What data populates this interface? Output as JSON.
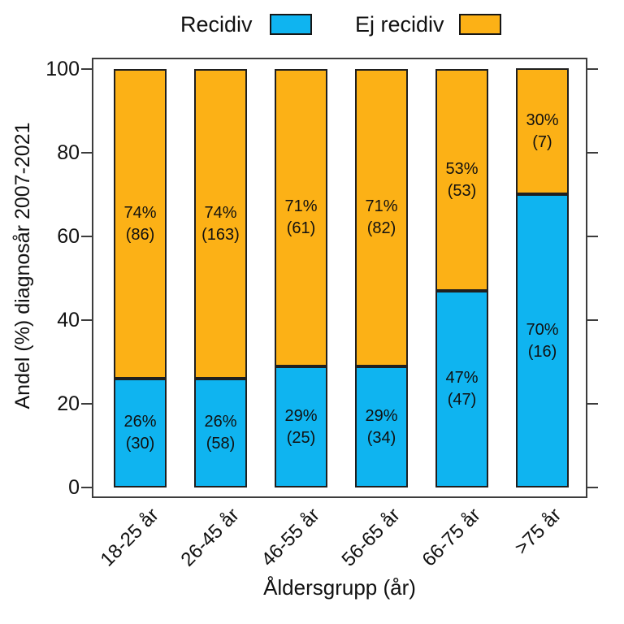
{
  "legend": {
    "items": [
      {
        "label": "Recidiv",
        "color": "#0FB4F0"
      },
      {
        "label": "Ej recidiv",
        "color": "#FCB116"
      }
    ]
  },
  "chart_data": {
    "type": "bar",
    "stacked": true,
    "orientation": "vertical",
    "title": "",
    "xlabel": "Åldersgrupp (år)",
    "ylabel": "Andel (%) diagnosår 2007-2021",
    "ylim": [
      0,
      100
    ],
    "yticks": [
      0,
      20,
      40,
      60,
      80,
      100
    ],
    "grid": false,
    "legend_position": "top",
    "categories": [
      "18-25 år",
      "26-45 år",
      "46-55 år",
      "56-65 år",
      "66-75 år",
      ">75 år"
    ],
    "series": [
      {
        "name": "Recidiv",
        "color": "#0FB4F0",
        "values": [
          26,
          26,
          29,
          29,
          47,
          70
        ],
        "counts": [
          30,
          58,
          25,
          34,
          47,
          16
        ]
      },
      {
        "name": "Ej recidiv",
        "color": "#FCB116",
        "values": [
          74,
          74,
          71,
          71,
          53,
          30
        ],
        "counts": [
          86,
          163,
          61,
          82,
          53,
          7
        ]
      }
    ],
    "bar_label_format": "{percent}% ({count})",
    "colors": {
      "bar_border": "#1f1f1f",
      "axis": "#3c3c3c",
      "text": "#111111",
      "background": "#ffffff"
    }
  }
}
